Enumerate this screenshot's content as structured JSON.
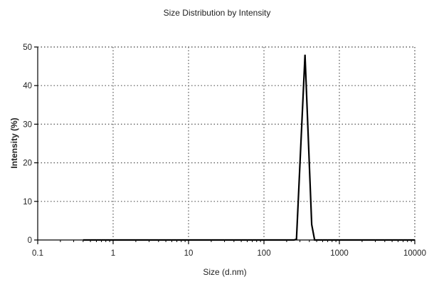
{
  "chart_data": {
    "type": "line",
    "title": "Size Distribution by Intensity",
    "xlabel": "Size (d.nm)",
    "ylabel": "Intensity (%)",
    "xscale": "log",
    "xlim": [
      0.1,
      10000
    ],
    "ylim": [
      0,
      50
    ],
    "xticks": [
      0.1,
      1,
      10,
      100,
      1000,
      10000
    ],
    "xtick_labels": [
      "0.1",
      "1",
      "10",
      "100",
      "1000",
      "10000"
    ],
    "yticks": [
      0,
      10,
      20,
      30,
      40,
      50
    ],
    "ytick_labels": [
      "0",
      "10",
      "20",
      "30",
      "40",
      "50"
    ],
    "grid": true,
    "grid_style": "dotted",
    "legend": "none",
    "line_color": "#000000",
    "series": [
      {
        "x": [
          0.4,
          250,
          270,
          350,
          430,
          470,
          10000
        ],
        "y": [
          0,
          0,
          0.2,
          48,
          4,
          0,
          0
        ]
      }
    ]
  }
}
